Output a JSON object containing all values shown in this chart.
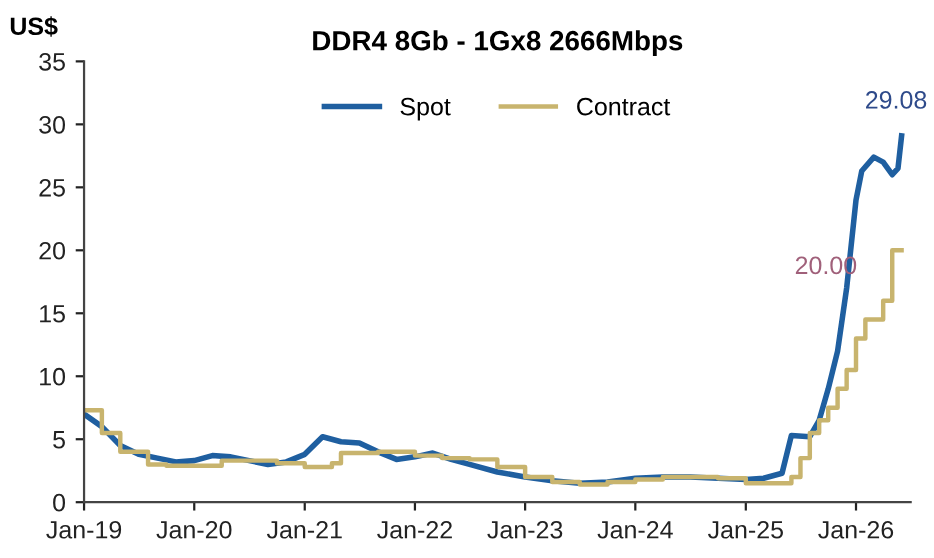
{
  "chart_data": {
    "type": "line",
    "title": "DDR4 8Gb - 1Gx8 2666Mbps",
    "ylabel": "US$",
    "xlim": [
      "2019-01",
      "2026-07"
    ],
    "xticks": [
      {
        "value": "2019-01",
        "label": "Jan-19"
      },
      {
        "value": "2020-01",
        "label": "Jan-20"
      },
      {
        "value": "2021-01",
        "label": "Jan-21"
      },
      {
        "value": "2022-01",
        "label": "Jan-22"
      },
      {
        "value": "2023-01",
        "label": "Jan-23"
      },
      {
        "value": "2024-01",
        "label": "Jan-24"
      },
      {
        "value": "2025-01",
        "label": "Jan-25"
      },
      {
        "value": "2026-01",
        "label": "Jan-26"
      }
    ],
    "ylim": [
      0,
      35
    ],
    "yticks": [
      0,
      5,
      10,
      15,
      20,
      25,
      30,
      35
    ],
    "grid": false,
    "legend": "top",
    "line_style": "solid",
    "marker": "none",
    "series": [
      {
        "name": "Spot",
        "color": "#1f5fa0",
        "x": [
          "2019-01",
          "2019-03",
          "2019-05",
          "2019-07",
          "2019-09",
          "2019-11",
          "2020-01",
          "2020-03",
          "2020-05",
          "2020-07",
          "2020-09",
          "2020-11",
          "2021-01",
          "2021-03",
          "2021-05",
          "2021-07",
          "2021-09",
          "2021-11",
          "2022-01",
          "2022-03",
          "2022-05",
          "2022-07",
          "2022-10",
          "2023-01",
          "2023-04",
          "2023-07",
          "2023-10",
          "2024-01",
          "2024-04",
          "2024-07",
          "2024-10",
          "2025-01",
          "2025-03",
          "2025-05",
          "2025-06",
          "2025-08",
          "2025-09",
          "2025-10",
          "2025-11",
          "2025-12",
          "2026-01",
          "2026-01-20",
          "2026-03",
          "2026-04",
          "2026-05",
          "2026-05-20",
          "2026-06"
        ],
        "values": [
          7.0,
          6.0,
          4.5,
          3.8,
          3.5,
          3.2,
          3.3,
          3.7,
          3.6,
          3.3,
          3.0,
          3.2,
          3.8,
          5.2,
          4.8,
          4.7,
          4.0,
          3.4,
          3.6,
          3.9,
          3.4,
          3.0,
          2.4,
          2.0,
          1.7,
          1.5,
          1.6,
          1.9,
          2.0,
          2.0,
          1.9,
          1.8,
          1.9,
          2.3,
          5.3,
          5.2,
          6.5,
          9,
          12,
          17,
          24,
          26.3,
          27.4,
          27.0,
          26.0,
          26.5,
          29.08
        ]
      },
      {
        "name": "Contract",
        "type": "step",
        "color": "#c8b46e",
        "x": [
          "2019-01",
          "2019-03",
          "2019-05",
          "2019-08",
          "2019-10",
          "2020-01",
          "2020-04",
          "2020-07",
          "2020-10",
          "2021-01",
          "2021-04",
          "2021-05",
          "2021-09",
          "2022-01",
          "2022-04",
          "2022-07",
          "2022-10",
          "2023-01",
          "2023-04",
          "2023-07",
          "2023-10",
          "2024-01",
          "2024-04",
          "2024-10",
          "2025-01",
          "2025-04",
          "2025-06",
          "2025-07",
          "2025-08",
          "2025-09",
          "2025-10",
          "2025-11",
          "2025-12",
          "2026-01",
          "2026-02",
          "2026-04",
          "2026-05",
          "2026-06"
        ],
        "values": [
          7.3,
          5.5,
          4.0,
          3.0,
          2.9,
          2.9,
          3.3,
          3.3,
          3.1,
          2.8,
          3.1,
          3.9,
          4.0,
          3.7,
          3.5,
          3.4,
          2.8,
          2.0,
          1.6,
          1.4,
          1.6,
          1.8,
          2.0,
          1.9,
          1.5,
          1.5,
          2.0,
          3.5,
          5.5,
          6.5,
          7.5,
          9.0,
          10.5,
          13.0,
          14.5,
          16.0,
          20.0,
          20.0
        ]
      }
    ],
    "annotations": [
      {
        "text": "29.08",
        "x": "2026-06",
        "y": 29.08
      },
      {
        "text": "20.00",
        "x": "2026-06",
        "y": 20.0
      }
    ]
  }
}
